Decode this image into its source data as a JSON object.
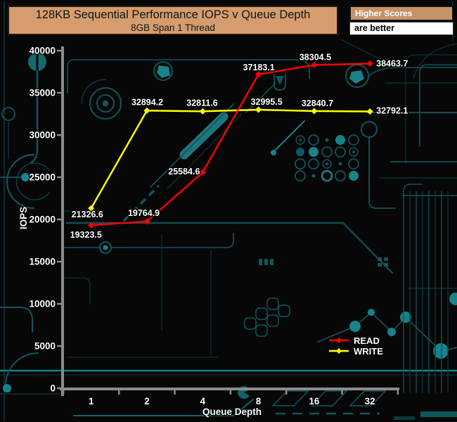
{
  "banner": {
    "title": "128KB Sequential Performance IOPS v Queue Depth",
    "subtitle": "8GB Span 1 Thread"
  },
  "note": {
    "header": "Higher Scores",
    "body": "are better"
  },
  "chart_data": {
    "type": "line",
    "title": "128KB Sequential Performance IOPS v Queue Depth",
    "subtitle": "8GB Span 1 Thread",
    "xlabel": "Queue Depth",
    "ylabel": "IOPS",
    "categories": [
      "1",
      "2",
      "4",
      "8",
      "16",
      "32"
    ],
    "series": [
      {
        "name": "READ",
        "color": "#ff0000",
        "values": [
          19323.5,
          19764.9,
          25584.6,
          37183.1,
          38304.5,
          38463.7
        ]
      },
      {
        "name": "WRITE",
        "color": "#ffff00",
        "values": [
          21326.6,
          32894.2,
          32811.6,
          32995.5,
          32840.7,
          32792.1
        ]
      }
    ],
    "ylim": [
      0,
      40000
    ],
    "ytick_step": 5000,
    "grid": false,
    "marker": "diamond",
    "legend_position": "lower-right"
  },
  "colors": {
    "banner_bg": "#d59d6e",
    "note_header_bg": "#c4946a",
    "axis": "#8c8c8c",
    "background": "#070707",
    "circuit_trace": "#0f565e",
    "circuit_bright": "#1a828a"
  }
}
